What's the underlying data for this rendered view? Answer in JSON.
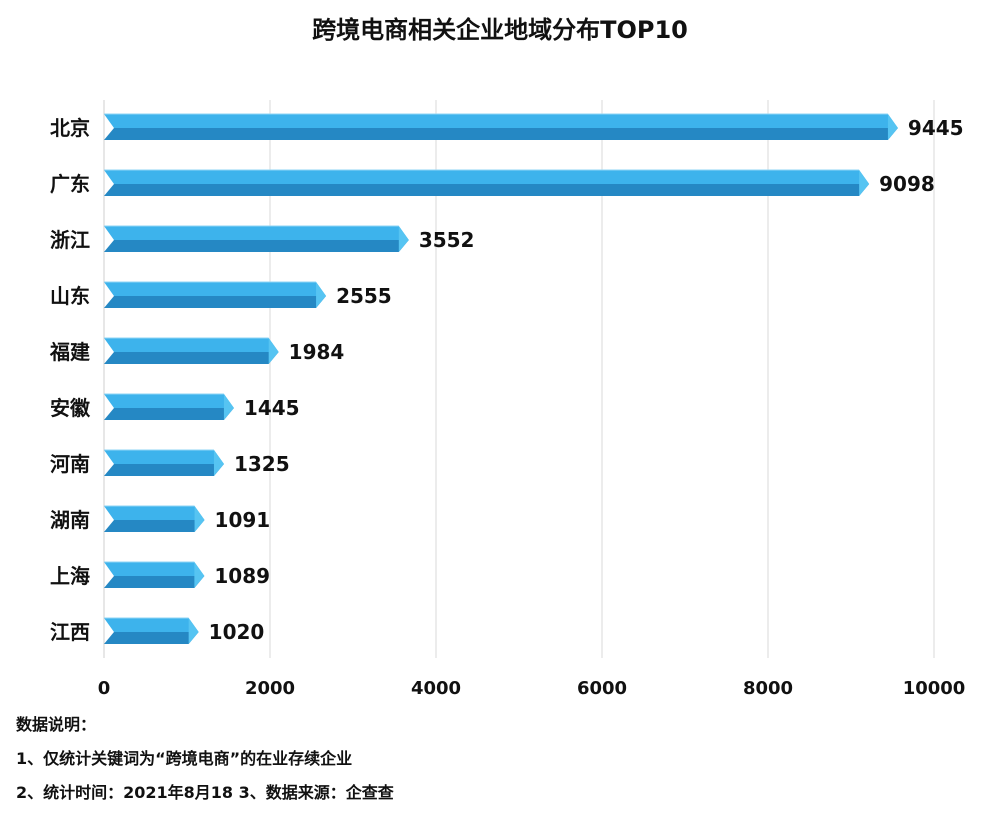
{
  "chart_data": {
    "type": "bar",
    "orientation": "horizontal",
    "title": "跨境电商相关企业地域分布TOP10",
    "categories": [
      "北京",
      "广东",
      "浙江",
      "山东",
      "福建",
      "安徽",
      "河南",
      "湖南",
      "上海",
      "江西"
    ],
    "values": [
      9445,
      9098,
      3552,
      2555,
      1984,
      1445,
      1325,
      1091,
      1089,
      1020
    ],
    "xlim": [
      0,
      10000
    ],
    "xticks": [
      "0",
      "2000",
      "4000",
      "6000",
      "8000",
      "10000"
    ],
    "grid": true,
    "bar_color": "#3db3ec",
    "bar_side_color": "#2588c4"
  },
  "notes": {
    "heading": "数据说明：",
    "line1": "1、仅统计关键词为“跨境电商”的在业存续企业",
    "line2": "2、统计时间：2021年8月18  3、数据来源：企查查"
  }
}
